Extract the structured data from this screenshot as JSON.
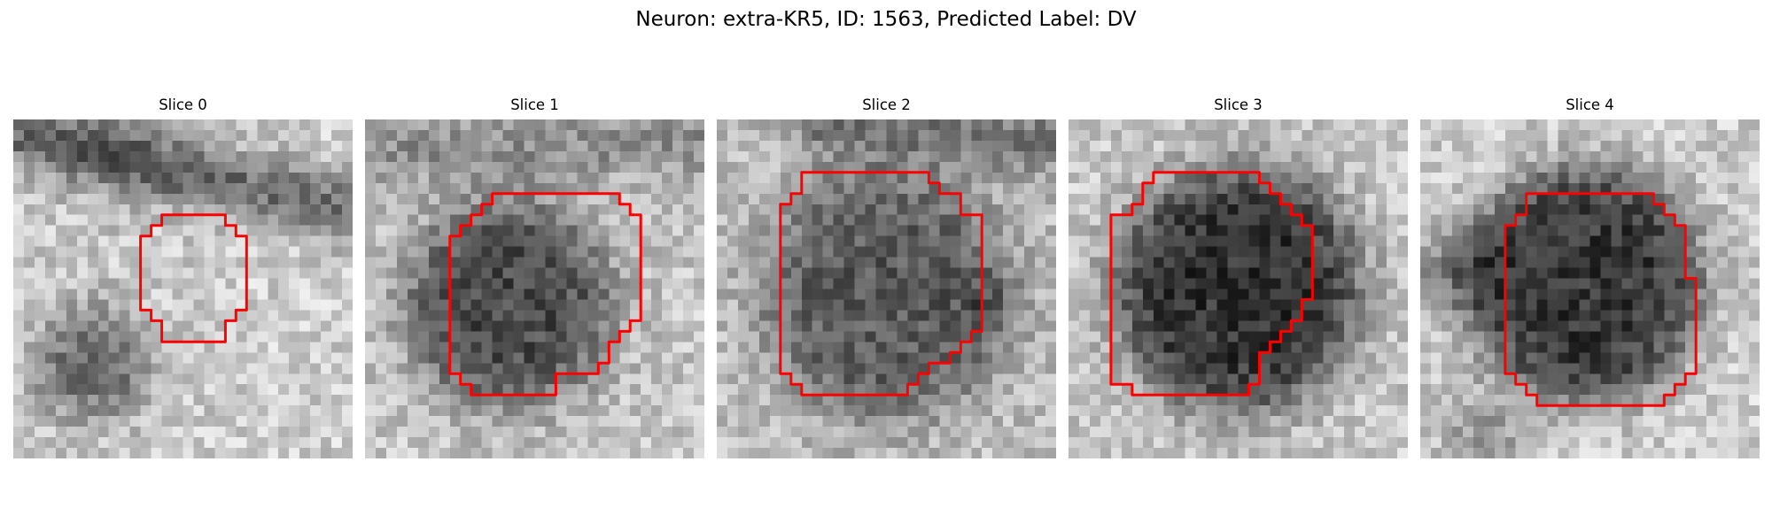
{
  "figure": {
    "title": "Neuron: extra-KR5, ID: 1563, Predicted Label: DV"
  },
  "colors": {
    "contour": "#ff0000",
    "background": "#ffffff"
  },
  "panels": [
    {
      "title": "Slice 0"
    },
    {
      "title": "Slice 1"
    },
    {
      "title": "Slice 2"
    },
    {
      "title": "Slice 3"
    },
    {
      "title": "Slice 4"
    }
  ]
}
